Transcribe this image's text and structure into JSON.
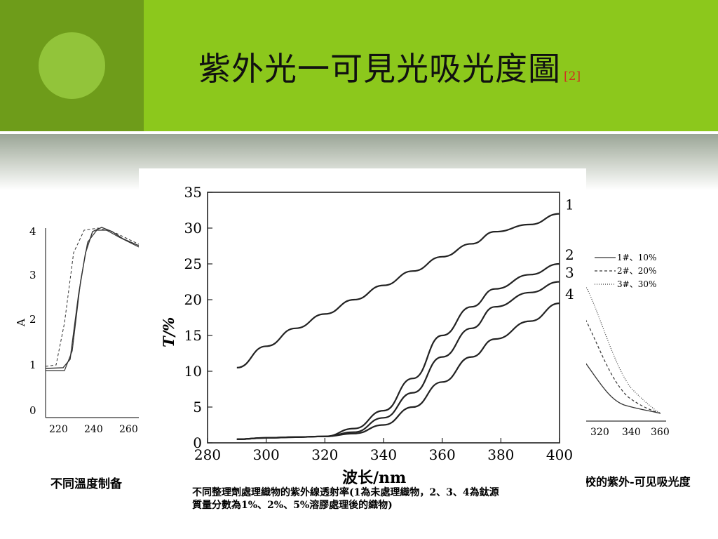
{
  "slide": {
    "title": "紫外光一可見光吸光度圖",
    "title_ref": "[2]",
    "colors": {
      "header_dark": "#6e9c1a",
      "header_light": "#8cc81c",
      "circle": "#92c43a"
    }
  },
  "left_figure": {
    "ylabel": "A",
    "yticks": [
      "0",
      "1",
      "2",
      "3",
      "4"
    ],
    "xticks": [
      "220",
      "240",
      "260"
    ],
    "caption": "不同溫度制备"
  },
  "right_figure": {
    "legend": [
      "1#、10%",
      "2#、20%",
      "3#、30%"
    ],
    "xticks": [
      "320",
      "340",
      "360"
    ],
    "caption": "校的紫外-可见吸光度"
  },
  "main_figure": {
    "ylabel": "T/%",
    "xlabel": "波长/nm",
    "caption_line1": "不同整理劑處理織物的紫外線透射率(1為未處理織物，2、3、4為鈦源",
    "caption_line2": "質量分數為1%、2%、5%溶膠處理後的織物)"
  },
  "chart_data": {
    "type": "line",
    "xlabel": "波长/nm",
    "ylabel": "T/%",
    "xlim": [
      280,
      400
    ],
    "ylim": [
      0,
      35
    ],
    "xticks": [
      280,
      300,
      320,
      340,
      360,
      380,
      400
    ],
    "yticks": [
      0,
      5,
      10,
      15,
      20,
      25,
      30,
      35
    ],
    "grid": false,
    "x": [
      290,
      300,
      310,
      320,
      330,
      340,
      350,
      360,
      370,
      378,
      390,
      400
    ],
    "series": [
      {
        "name": "1",
        "values": [
          10.5,
          13.5,
          16,
          18,
          20,
          22,
          24,
          26,
          27.8,
          29.5,
          30.5,
          32
        ]
      },
      {
        "name": "2",
        "values": [
          0.5,
          0.7,
          0.8,
          0.9,
          2,
          4.5,
          9,
          15,
          19,
          21.5,
          23.5,
          25
        ]
      },
      {
        "name": "3",
        "values": [
          0.5,
          0.7,
          0.8,
          0.9,
          1.5,
          3.5,
          7,
          12,
          16,
          19,
          21,
          22.5
        ]
      },
      {
        "name": "4",
        "values": [
          0.5,
          0.7,
          0.8,
          0.9,
          1.3,
          2.5,
          5,
          8.5,
          12,
          14.5,
          17,
          19.5
        ]
      }
    ]
  }
}
